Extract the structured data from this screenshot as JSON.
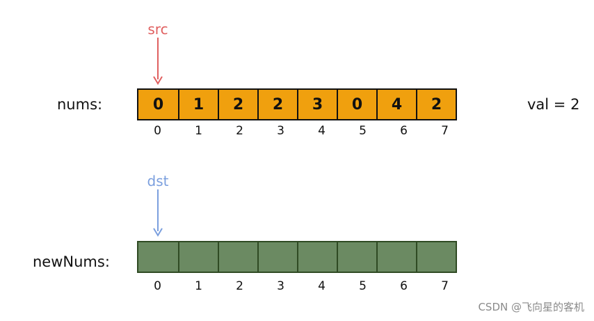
{
  "diagram": {
    "src_label": "src",
    "dst_label": "dst",
    "nums_label": "nums:",
    "new_nums_label": "newNums:",
    "val_text": "val = 2",
    "nums_values": [
      "0",
      "1",
      "2",
      "2",
      "3",
      "0",
      "4",
      "2"
    ],
    "indices": [
      "0",
      "1",
      "2",
      "3",
      "4",
      "5",
      "6",
      "7"
    ],
    "new_nums_values": [
      "",
      "",
      "",
      "",
      "",
      "",
      "",
      ""
    ],
    "colors": {
      "src_pointer": "#e06060",
      "dst_pointer": "#7b9fde",
      "nums_cell": "#f0a00e",
      "new_nums_cell": "#6b8a62"
    }
  },
  "watermark": "CSDN @飞向星的客机"
}
